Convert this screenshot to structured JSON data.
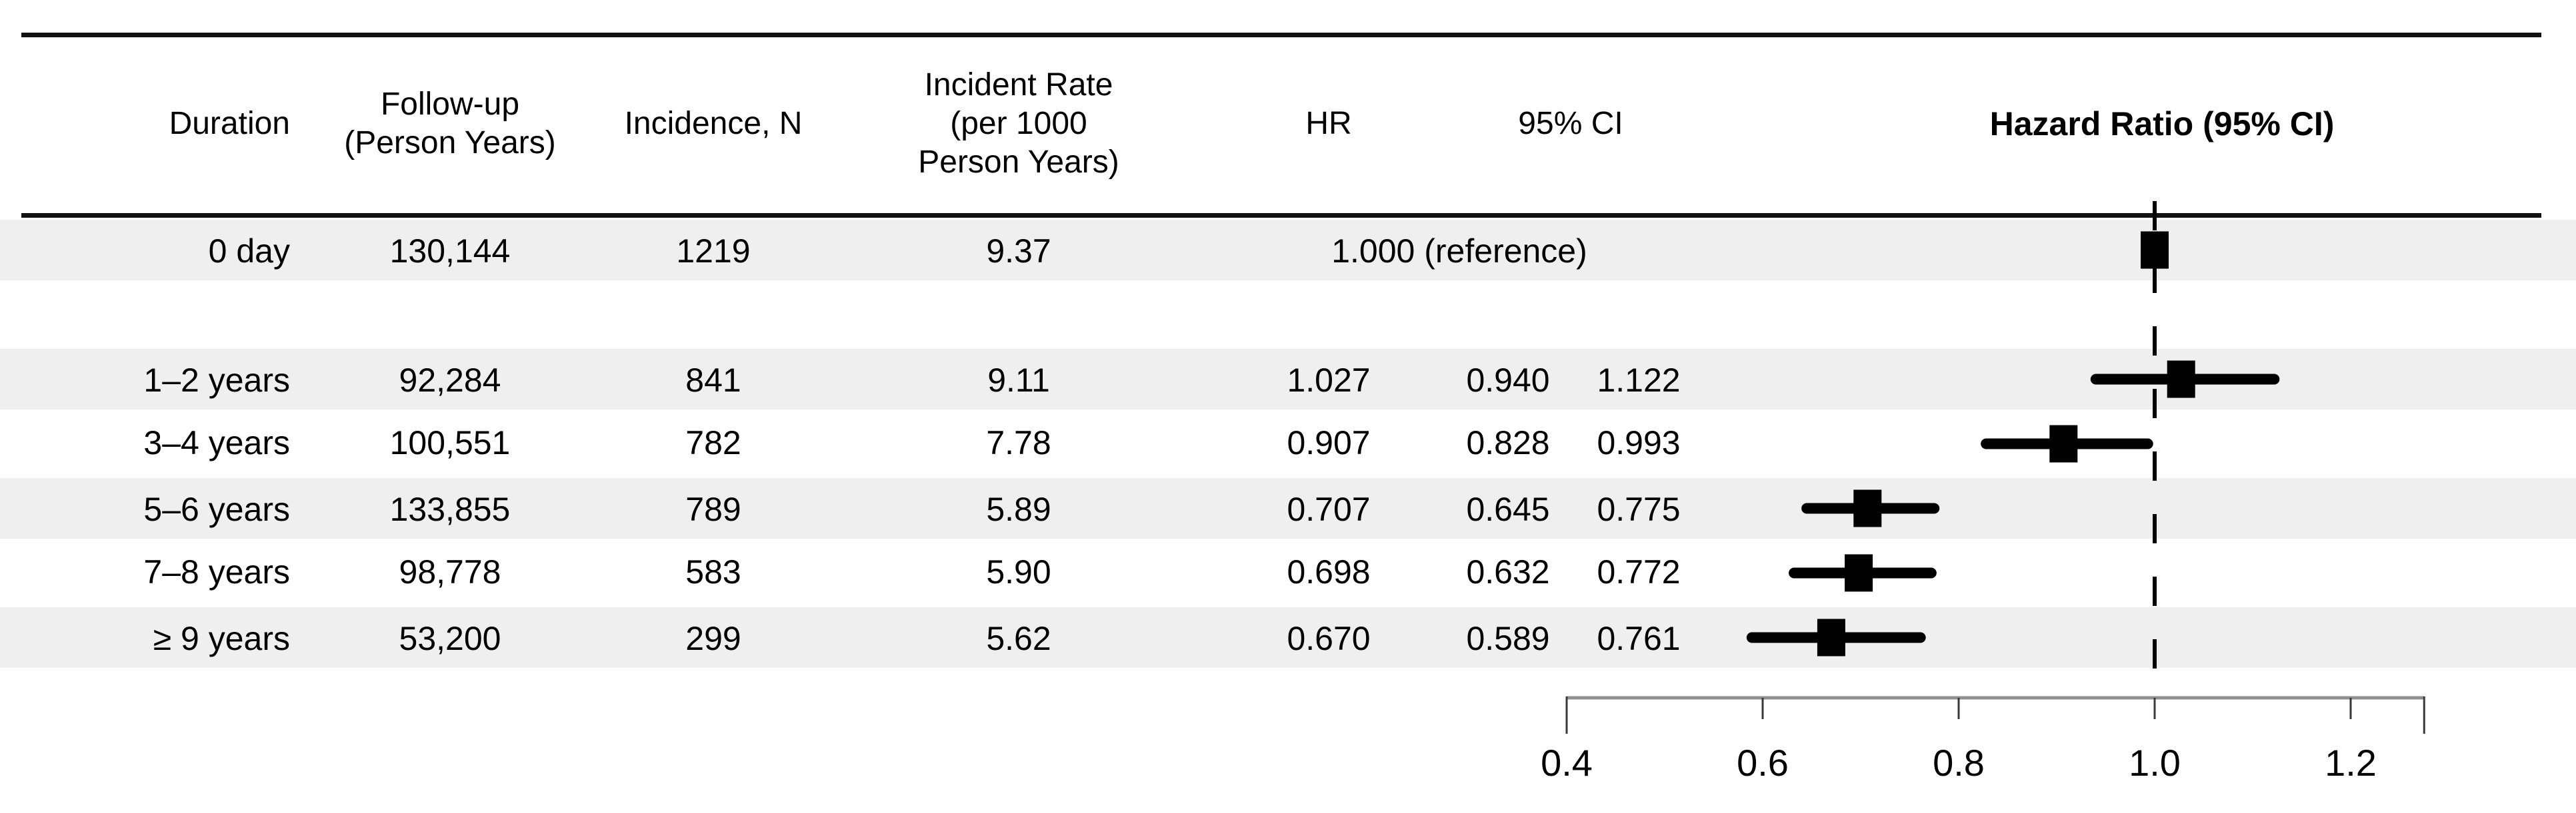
{
  "chart_data": {
    "type": "forest",
    "title": "Hazard Ratio (95% CI)",
    "x_axis": {
      "ticks": [
        0.4,
        0.6,
        0.8,
        1.0,
        1.2
      ],
      "range": [
        0.4,
        1.275
      ],
      "reference_line": 1.0
    },
    "points": [
      {
        "label": "0 day",
        "hr": 1.0,
        "lo": null,
        "hi": null,
        "reference": true
      },
      {
        "label": "1–2 years",
        "hr": 1.027,
        "lo": 0.94,
        "hi": 1.122,
        "reference": false
      },
      {
        "label": "3–4 years",
        "hr": 0.907,
        "lo": 0.828,
        "hi": 0.993,
        "reference": false
      },
      {
        "label": "5–6 years",
        "hr": 0.707,
        "lo": 0.645,
        "hi": 0.775,
        "reference": false
      },
      {
        "label": "7–8 years",
        "hr": 0.698,
        "lo": 0.632,
        "hi": 0.772,
        "reference": false
      },
      {
        "label": "≥ 9 years",
        "hr": 0.67,
        "lo": 0.589,
        "hi": 0.761,
        "reference": false
      }
    ]
  },
  "header": {
    "duration": "Duration",
    "followup": "Follow-up\n(Person Years)",
    "incidence": "Incidence, N",
    "rate": "Incident Rate\n(per 1000\nPerson Years)",
    "hr": "HR",
    "ci": "95% CI"
  },
  "table": {
    "rows": [
      {
        "duration": "0 day",
        "followup": "130,144",
        "incidence": "1219",
        "rate": "9.37",
        "hr": "1.000 (reference)",
        "ci_low": "",
        "ci_high": ""
      },
      {
        "duration": "1–2 years",
        "followup": "92,284",
        "incidence": "841",
        "rate": "9.11",
        "hr": "1.027",
        "ci_low": "0.940",
        "ci_high": "1.122"
      },
      {
        "duration": "3–4 years",
        "followup": "100,551",
        "incidence": "782",
        "rate": "7.78",
        "hr": "0.907",
        "ci_low": "0.828",
        "ci_high": "0.993"
      },
      {
        "duration": "5–6 years",
        "followup": "133,855",
        "incidence": "789",
        "rate": "5.89",
        "hr": "0.707",
        "ci_low": "0.645",
        "ci_high": "0.775"
      },
      {
        "duration": "7–8 years",
        "followup": "98,778",
        "incidence": "583",
        "rate": "5.90",
        "hr": "0.698",
        "ci_low": "0.632",
        "ci_high": "0.772"
      },
      {
        "duration": "≥ 9 years",
        "followup": "53,200",
        "incidence": "299",
        "rate": "5.62",
        "hr": "0.670",
        "ci_low": "0.589",
        "ci_high": "0.761"
      }
    ]
  },
  "colors": {
    "band": "#efefef",
    "axis_line": "#8f8f8f",
    "tick": "#3a3a3a",
    "marker": "#000000"
  }
}
